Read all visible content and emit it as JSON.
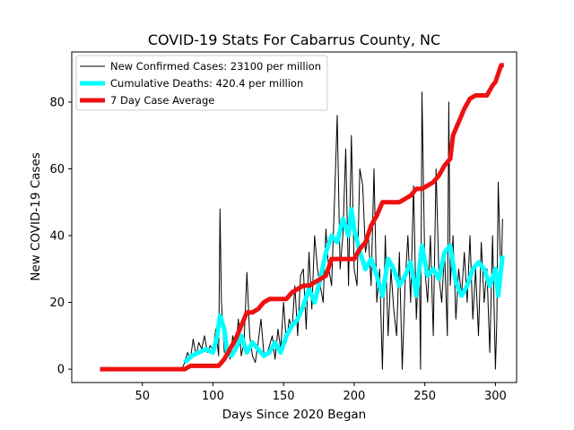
{
  "chart_data": {
    "type": "line",
    "title": "COVID-19 Stats For Cabarrus County, NC",
    "xlabel": "Days Since 2020 Began",
    "ylabel": "New COVID-19 Cases",
    "xlim": [
      0,
      315
    ],
    "ylim": [
      -4,
      95
    ],
    "xticks": [
      50,
      100,
      150,
      200,
      250,
      300
    ],
    "yticks": [
      0,
      20,
      40,
      60,
      80
    ],
    "grid": false,
    "legend_position": "top-left",
    "series": [
      {
        "name": "New Confirmed Cases: 23100 per million",
        "color": "#000000",
        "x": [
          20,
          30,
          40,
          50,
          60,
          70,
          78,
          80,
          82,
          84,
          86,
          88,
          90,
          92,
          94,
          96,
          98,
          100,
          102,
          104,
          105,
          106,
          108,
          110,
          112,
          114,
          116,
          118,
          120,
          122,
          124,
          126,
          128,
          130,
          132,
          134,
          136,
          138,
          140,
          142,
          144,
          146,
          148,
          150,
          152,
          154,
          156,
          158,
          160,
          162,
          164,
          166,
          168,
          170,
          172,
          174,
          176,
          178,
          180,
          181,
          182,
          184,
          186,
          188,
          190,
          192,
          194,
          196,
          198,
          200,
          202,
          204,
          206,
          208,
          210,
          212,
          214,
          216,
          218,
          220,
          222,
          224,
          226,
          228,
          230,
          232,
          234,
          236,
          238,
          240,
          242,
          244,
          246,
          247,
          248,
          250,
          252,
          254,
          256,
          258,
          260,
          262,
          264,
          266,
          267,
          268,
          270,
          272,
          274,
          276,
          278,
          280,
          282,
          284,
          286,
          288,
          290,
          292,
          294,
          296,
          298,
          300,
          301,
          302,
          304,
          305
        ],
        "y": [
          0,
          0,
          0,
          0,
          0,
          0,
          0,
          2,
          5,
          3,
          9,
          4,
          8,
          6,
          10,
          5,
          7,
          6,
          12,
          4,
          48,
          20,
          5,
          8,
          3,
          10,
          6,
          15,
          4,
          8,
          29,
          10,
          4,
          2,
          8,
          15,
          5,
          4,
          7,
          10,
          3,
          12,
          6,
          20,
          8,
          15,
          12,
          25,
          10,
          28,
          30,
          12,
          35,
          18,
          40,
          30,
          25,
          20,
          42,
          35,
          30,
          25,
          50,
          76,
          30,
          40,
          66,
          25,
          70,
          30,
          25,
          60,
          55,
          35,
          40,
          25,
          60,
          20,
          30,
          0,
          40,
          10,
          30,
          18,
          10,
          35,
          0,
          25,
          40,
          20,
          55,
          15,
          35,
          0,
          83,
          30,
          20,
          40,
          10,
          60,
          28,
          20,
          35,
          10,
          80,
          25,
          40,
          15,
          30,
          22,
          35,
          20,
          40,
          15,
          30,
          10,
          38,
          20,
          30,
          5,
          40,
          0,
          15,
          56,
          25,
          45
        ]
      },
      {
        "name": "Cumulative Deaths: 420.4 per million",
        "color": "#00ffff",
        "x": [
          80,
          85,
          90,
          95,
          100,
          103,
          105,
          108,
          110,
          113,
          116,
          120,
          124,
          128,
          132,
          136,
          140,
          144,
          148,
          152,
          156,
          160,
          164,
          168,
          172,
          176,
          180,
          184,
          188,
          192,
          196,
          198,
          200,
          204,
          208,
          212,
          216,
          220,
          224,
          228,
          232,
          236,
          240,
          244,
          248,
          252,
          256,
          260,
          264,
          268,
          272,
          276,
          280,
          284,
          288,
          292,
          296,
          300,
          302,
          304,
          305
        ],
        "y": [
          2,
          4,
          5,
          6,
          5,
          10,
          16,
          12,
          5,
          4,
          6,
          10,
          5,
          8,
          6,
          4,
          5,
          8,
          5,
          10,
          13,
          15,
          19,
          24,
          20,
          27,
          35,
          40,
          38,
          45,
          40,
          48,
          42,
          35,
          30,
          33,
          28,
          22,
          33,
          30,
          25,
          28,
          32,
          22,
          37,
          28,
          30,
          27,
          35,
          37,
          26,
          22,
          25,
          30,
          32,
          30,
          25,
          30,
          22,
          30,
          34
        ]
      },
      {
        "name": "7 Day Case Average",
        "color": "#ee1111",
        "x": [
          20,
          40,
          60,
          80,
          84,
          90,
          100,
          104,
          108,
          112,
          116,
          120,
          124,
          128,
          132,
          136,
          140,
          144,
          148,
          152,
          156,
          160,
          164,
          168,
          172,
          176,
          180,
          184,
          188,
          192,
          196,
          198,
          200,
          204,
          208,
          212,
          216,
          220,
          224,
          228,
          232,
          236,
          240,
          244,
          248,
          252,
          256,
          260,
          264,
          268,
          270,
          274,
          278,
          282,
          286,
          290,
          294,
          298,
          300,
          304,
          306
        ],
        "y": [
          0,
          0,
          0,
          0,
          1,
          1,
          1,
          1,
          3,
          6,
          9,
          13,
          17,
          17,
          18,
          20,
          21,
          21,
          21,
          21,
          23,
          24,
          25,
          25,
          26,
          27,
          28,
          33,
          33,
          33,
          33,
          33,
          33,
          36,
          38,
          43,
          46,
          50,
          50,
          50,
          50,
          51,
          52,
          54,
          54,
          55,
          56,
          58,
          61,
          63,
          70,
          74,
          78,
          81,
          82,
          82,
          82,
          85,
          86,
          91,
          91
        ]
      }
    ]
  }
}
